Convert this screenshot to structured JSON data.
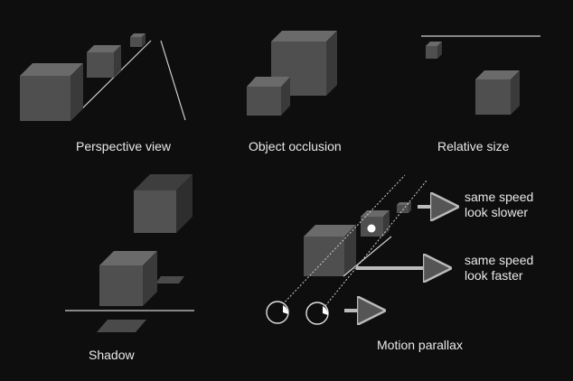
{
  "labels": {
    "perspective": "Perspective view",
    "occlusion": "Object occlusion",
    "relative_size": "Relative size",
    "shadow": "Shadow",
    "motion_parallax": "Motion parallax",
    "slower_line1": "same speed",
    "slower_line2": "look slower",
    "faster_line1": "same speed",
    "faster_line2": "look faster"
  },
  "colors": {
    "background": "#0e0e0e",
    "cube_front": "#4f4f4f",
    "cube_top": "#6a6a6a",
    "cube_side": "#3a3a3a",
    "line": "#d0d0d0",
    "text": "#e8e8e8"
  }
}
